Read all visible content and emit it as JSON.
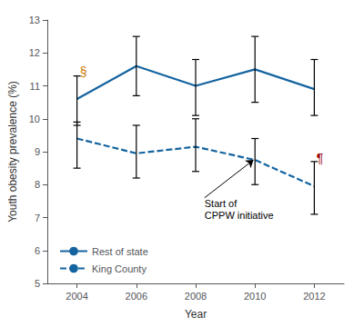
{
  "chart_data": {
    "type": "line",
    "xlabel": "Year",
    "ylabel": "Youth obesity prevalence (%)",
    "x": [
      2004,
      2006,
      2008,
      2010,
      2012
    ],
    "xlim": [
      2003,
      2013
    ],
    "xticks": [
      2004,
      2006,
      2008,
      2010,
      2012
    ],
    "ylim": [
      5,
      13
    ],
    "yticks": [
      5,
      6,
      7,
      8,
      9,
      10,
      11,
      12,
      13
    ],
    "grid": false,
    "legend": "lower left",
    "series": [
      {
        "name": "Rest of state",
        "color": "#1464a0",
        "line_style": "solid",
        "values": [
          10.6,
          11.6,
          11.0,
          11.5,
          10.9
        ],
        "ci_low": [
          9.8,
          10.7,
          10.1,
          10.5,
          10.1
        ],
        "ci_high": [
          11.3,
          12.5,
          11.8,
          12.5,
          11.8
        ]
      },
      {
        "name": "King County",
        "color": "#1464a0",
        "line_style": "dashed",
        "values": [
          9.4,
          8.95,
          9.15,
          8.75,
          7.95
        ],
        "ci_low": [
          8.5,
          8.2,
          8.4,
          8.0,
          7.1
        ],
        "ci_high": [
          9.9,
          9.8,
          10.0,
          9.4,
          8.7
        ]
      }
    ],
    "annotations": [
      {
        "text": "Start of\nCPPW initiative",
        "x": 2008.3,
        "y": 7.6,
        "arrow_x": 2009.95,
        "arrow_y": 8.75
      },
      {
        "text": "§",
        "x": 2004.1,
        "y": 11.2,
        "color": "#cc7700"
      },
      {
        "text": "¶",
        "x": 2012.07,
        "y": 8.6,
        "color": "#990000"
      }
    ]
  }
}
